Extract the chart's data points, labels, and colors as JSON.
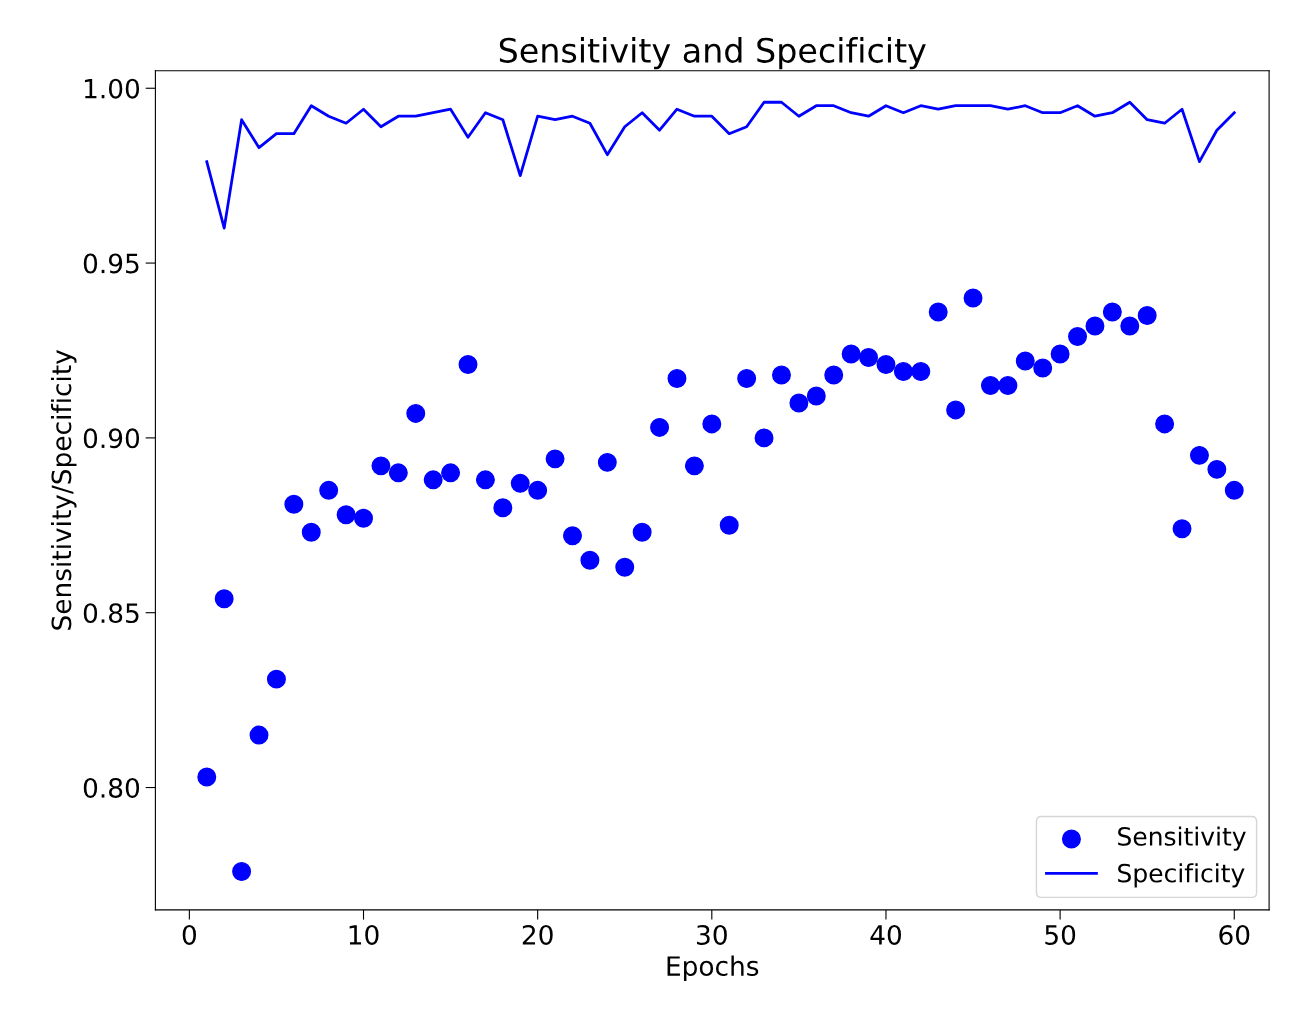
{
  "chart_data": {
    "type": "line",
    "title": "Sensitivity and Specificity",
    "xlabel": "Epochs",
    "ylabel": "Sensitivity/Specificity",
    "xlim": [
      -1.95,
      62.0
    ],
    "ylim": [
      0.765,
      1.005
    ],
    "xticks": [
      0,
      10,
      20,
      30,
      40,
      50,
      60
    ],
    "yticks": [
      {
        "value": 0.8,
        "label": "0.80"
      },
      {
        "value": 0.85,
        "label": "0.85"
      },
      {
        "value": 0.9,
        "label": "0.90"
      },
      {
        "value": 0.95,
        "label": "0.95"
      },
      {
        "value": 1.0,
        "label": "1.00"
      }
    ],
    "grid": false,
    "legend": "bottom right",
    "x": [
      1,
      2,
      3,
      4,
      5,
      6,
      7,
      8,
      9,
      10,
      11,
      12,
      13,
      14,
      15,
      16,
      17,
      18,
      19,
      20,
      21,
      22,
      23,
      24,
      25,
      26,
      27,
      28,
      29,
      30,
      31,
      32,
      33,
      34,
      35,
      36,
      37,
      38,
      39,
      40,
      41,
      42,
      43,
      44,
      45,
      46,
      47,
      48,
      49,
      50,
      51,
      52,
      53,
      54,
      55,
      56,
      57,
      58,
      59,
      60
    ],
    "series": [
      {
        "name": "Sensitivity",
        "type": "scatter",
        "marker": "circle",
        "color": "#0000ff",
        "values": [
          0.803,
          0.854,
          0.776,
          0.815,
          0.831,
          0.881,
          0.873,
          0.885,
          0.878,
          0.877,
          0.892,
          0.89,
          0.907,
          0.888,
          0.89,
          0.921,
          0.888,
          0.88,
          0.887,
          0.885,
          0.894,
          0.872,
          0.865,
          0.893,
          0.863,
          0.873,
          0.903,
          0.917,
          0.892,
          0.904,
          0.875,
          0.917,
          0.9,
          0.918,
          0.91,
          0.912,
          0.918,
          0.924,
          0.923,
          0.921,
          0.919,
          0.919,
          0.936,
          0.908,
          0.94,
          0.915,
          0.915,
          0.922,
          0.92,
          0.924,
          0.929,
          0.932,
          0.936,
          0.932,
          0.935,
          0.904,
          0.874,
          0.895,
          0.891,
          0.885
        ]
      },
      {
        "name": "Specificity",
        "line_style": "solid",
        "color": "#0000ff",
        "values": [
          0.979,
          0.96,
          0.991,
          0.983,
          0.987,
          0.987,
          0.995,
          0.992,
          0.99,
          0.994,
          0.989,
          0.992,
          0.992,
          0.993,
          0.994,
          0.986,
          0.993,
          0.991,
          0.975,
          0.992,
          0.991,
          0.992,
          0.99,
          0.981,
          0.989,
          0.993,
          0.988,
          0.994,
          0.992,
          0.992,
          0.987,
          0.989,
          0.996,
          0.996,
          0.992,
          0.995,
          0.995,
          0.993,
          0.992,
          0.995,
          0.993,
          0.995,
          0.994,
          0.995,
          0.995,
          0.995,
          0.994,
          0.995,
          0.993,
          0.993,
          0.995,
          0.992,
          0.993,
          0.996,
          0.991,
          0.99,
          0.994,
          0.979,
          0.988,
          0.993
        ]
      }
    ]
  }
}
